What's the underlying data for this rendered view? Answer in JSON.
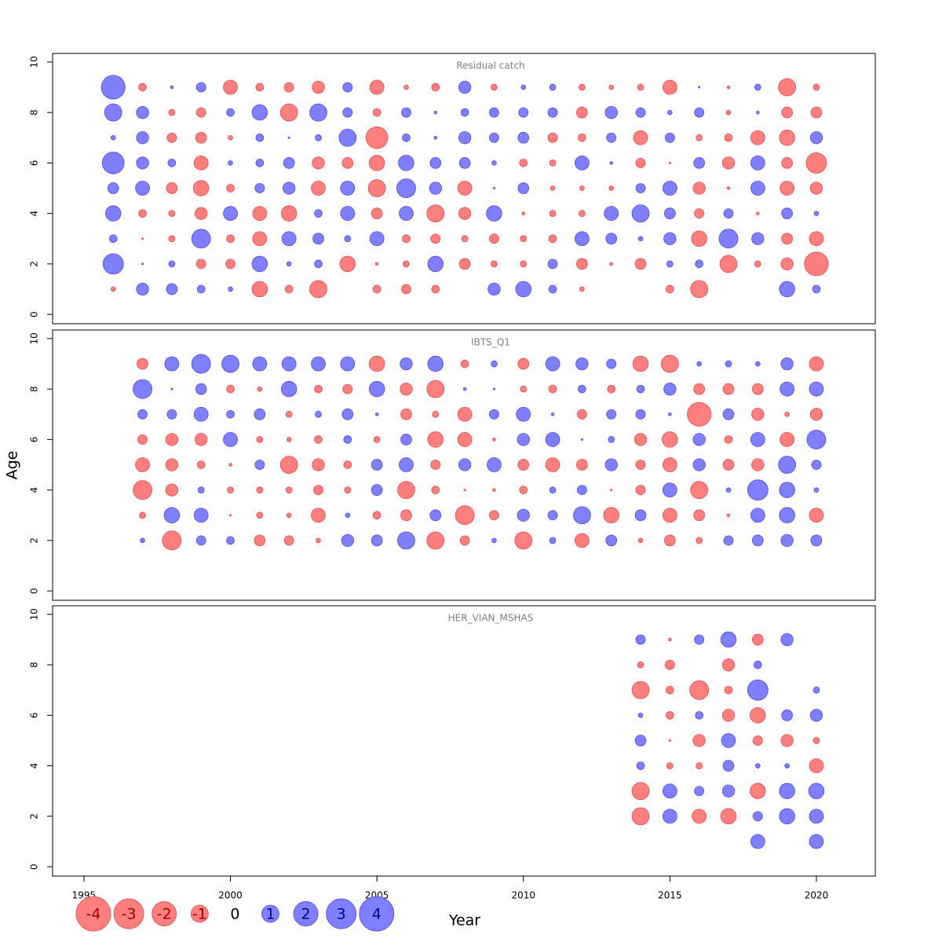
{
  "chart_data": {
    "type": "bubble",
    "xlabel": "Year",
    "ylabel": "Age",
    "xlim": [
      1993.93,
      2022.01
    ],
    "xticks": [
      1995,
      2000,
      2005,
      2010,
      2015,
      2020
    ],
    "ylim": [
      -0.37,
      10.34
    ],
    "yticks": [
      0,
      2,
      4,
      6,
      8,
      10
    ],
    "negative_color": "#ff7f7f",
    "positive_color": "#7f7fff",
    "panels": [
      {
        "title": "Residual catch",
        "x": [
          1996,
          1997,
          1998,
          1999,
          2000,
          2001,
          2002,
          2003,
          2004,
          2005,
          2006,
          2007,
          2008,
          2009,
          2010,
          2011,
          2012,
          2013,
          2014,
          2015,
          2016,
          2017,
          2018,
          2019,
          2020
        ],
        "y": [
          1,
          2,
          3,
          4,
          5,
          6,
          7,
          8,
          9
        ],
        "values": [
          [
            -0.07,
            0.5,
            0.4,
            0.2,
            0.07,
            -0.8,
            -0.2,
            -1.0,
            null,
            -0.2,
            -0.3,
            -0.2,
            null,
            0.5,
            0.8,
            0.2,
            -0.07,
            null,
            null,
            -0.2,
            -1.0,
            null,
            null,
            0.8,
            0.2
          ],
          [
            1.4,
            0.01,
            0.13,
            -0.3,
            -0.3,
            0.8,
            0.07,
            0.2,
            -0.8,
            -0.03,
            -0.13,
            0.8,
            -0.4,
            -0.13,
            -0.13,
            0.3,
            -0.4,
            -0.03,
            -0.4,
            0.13,
            0.2,
            -1.0,
            -0.13,
            -0.5,
            -1.9
          ],
          [
            0.2,
            -0.01,
            -0.13,
            1.2,
            -0.2,
            -0.67,
            0.67,
            0.4,
            0.13,
            0.67,
            -0.2,
            -0.3,
            -0.13,
            -0.3,
            -0.13,
            -0.2,
            0.67,
            0.4,
            0.07,
            0.5,
            -0.8,
            1.2,
            0.5,
            -0.4,
            -0.67
          ],
          [
            0.8,
            -0.2,
            -0.13,
            -0.5,
            0.67,
            -0.67,
            -0.8,
            0.2,
            0.67,
            -0.4,
            0.67,
            -1.0,
            -0.5,
            0.8,
            -0.03,
            -0.13,
            -0.13,
            0.67,
            1.0,
            0.4,
            -0.3,
            0.3,
            -0.03,
            0.4,
            0.07
          ],
          [
            0.4,
            0.67,
            -0.4,
            -0.8,
            -0.2,
            0.3,
            0.5,
            -0.67,
            0.67,
            -1.0,
            1.2,
            0.5,
            -0.67,
            0.01,
            0.4,
            -0.07,
            -0.07,
            -0.07,
            0.3,
            0.67,
            -0.5,
            -0.03,
            0.67,
            -0.67,
            -0.5
          ],
          [
            1.6,
            0.5,
            0.2,
            -0.67,
            0.07,
            0.2,
            0.4,
            -0.5,
            -0.4,
            -0.8,
            0.8,
            0.4,
            0.4,
            0.07,
            -0.2,
            -0.13,
            0.67,
            0.03,
            -0.3,
            -0.01,
            0.4,
            -0.5,
            0.67,
            -0.4,
            -1.4
          ],
          [
            0.07,
            0.5,
            -0.3,
            -0.4,
            -0.07,
            0.2,
            0.01,
            0.13,
            1.0,
            -1.6,
            0.2,
            0.03,
            0.5,
            0.3,
            0.4,
            -0.3,
            -0.2,
            0.3,
            -0.67,
            0.3,
            -0.13,
            -0.2,
            -0.67,
            -0.8,
            0.5
          ],
          [
            1.0,
            0.5,
            -0.13,
            -0.3,
            0.2,
            0.8,
            -1.0,
            1.0,
            0.3,
            -0.2,
            0.3,
            0.03,
            0.2,
            0.3,
            0.3,
            0.3,
            -0.4,
            0.5,
            0.3,
            0.07,
            0.3,
            -0.07,
            0.03,
            -0.4,
            -0.4
          ],
          [
            1.9,
            -0.2,
            0.03,
            0.3,
            -0.67,
            -0.2,
            -0.3,
            -0.5,
            0.3,
            -0.67,
            -0.07,
            -0.2,
            0.5,
            -0.13,
            0.07,
            0.13,
            -0.13,
            -0.07,
            -0.13,
            -0.67,
            0.01,
            -0.03,
            0.13,
            -1.0,
            -0.13
          ]
        ]
      },
      {
        "title": "IBTS_Q1",
        "x": [
          1997,
          1998,
          1999,
          2000,
          2001,
          2002,
          2003,
          2004,
          2005,
          2006,
          2007,
          2008,
          2009,
          2010,
          2011,
          2012,
          2013,
          2014,
          2015,
          2016,
          2017,
          2018,
          2019,
          2020
        ],
        "y": [
          2,
          3,
          4,
          5,
          6,
          7,
          8,
          9
        ],
        "values": [
          [
            0.07,
            -1.2,
            0.3,
            0.2,
            -0.4,
            -0.3,
            -0.07,
            0.5,
            0.4,
            1.0,
            -1.0,
            -0.3,
            0.07,
            -1.0,
            0.13,
            -0.67,
            0.4,
            -0.07,
            -0.4,
            -0.13,
            0.3,
            0.4,
            0.5,
            0.4
          ],
          [
            -0.13,
            0.8,
            0.67,
            -0.01,
            -0.13,
            -0.07,
            -0.67,
            0.07,
            -0.2,
            -0.4,
            0.4,
            -1.2,
            -0.3,
            0.5,
            0.3,
            1.0,
            -0.8,
            0.4,
            -0.67,
            -0.4,
            -0.03,
            0.67,
            0.8,
            -0.67
          ],
          [
            -1.2,
            -0.5,
            0.13,
            -0.13,
            -0.13,
            -0.13,
            -0.3,
            -0.13,
            0.4,
            -1.0,
            -0.2,
            -0.01,
            -0.03,
            -0.2,
            0.13,
            0.3,
            -0.01,
            -0.3,
            0.67,
            -1.0,
            0.07,
            1.4,
            0.8,
            0.07
          ],
          [
            -0.67,
            -0.5,
            -0.2,
            -0.03,
            0.3,
            -1.0,
            -0.5,
            -0.2,
            0.4,
            0.67,
            -0.3,
            0.5,
            0.67,
            -0.4,
            -0.67,
            -0.4,
            0.5,
            -0.3,
            -0.67,
            0.5,
            -0.4,
            -0.5,
            1.0,
            0.3
          ],
          [
            -0.3,
            -0.5,
            -0.5,
            0.67,
            -0.13,
            -0.07,
            -0.2,
            0.2,
            -0.13,
            0.4,
            -0.8,
            -0.67,
            -0.03,
            0.5,
            0.67,
            0.01,
            0.13,
            -0.5,
            -0.8,
            0.5,
            -0.2,
            0.67,
            -0.67,
            1.2
          ],
          [
            0.3,
            0.3,
            0.67,
            0.2,
            0.4,
            -0.13,
            0.13,
            0.4,
            0.03,
            -0.4,
            -0.13,
            -0.67,
            0.3,
            0.67,
            0.03,
            -0.3,
            0.3,
            0.3,
            0.03,
            -1.9,
            0.4,
            -0.5,
            -0.07,
            -0.5
          ],
          [
            1.2,
            0.01,
            0.4,
            -0.2,
            -0.07,
            0.8,
            -0.2,
            -0.3,
            0.8,
            -0.5,
            -1.0,
            0.03,
            0.01,
            -0.13,
            -0.2,
            0.2,
            -0.2,
            0.2,
            0.5,
            -0.4,
            -0.4,
            -0.4,
            0.67,
            0.67
          ],
          [
            -0.4,
            0.67,
            1.2,
            1.0,
            0.67,
            0.67,
            0.67,
            0.67,
            -0.8,
            0.5,
            0.8,
            -0.2,
            0.13,
            -0.4,
            0.67,
            0.5,
            0.3,
            -0.8,
            -1.0,
            0.07,
            0.13,
            0.07,
            0.5,
            -0.67
          ]
        ]
      },
      {
        "title": "HER_VIAN_MSHAS",
        "x": [
          2014,
          2015,
          2016,
          2017,
          2018,
          2019,
          2020
        ],
        "y": [
          1,
          2,
          3,
          4,
          5,
          6,
          7,
          8,
          9
        ],
        "values": [
          [
            null,
            null,
            null,
            null,
            0.67,
            null,
            0.67
          ],
          [
            -1.0,
            0.67,
            -0.67,
            -0.8,
            0.3,
            0.8,
            0.67
          ],
          [
            -1.0,
            0.67,
            0.3,
            0.5,
            -0.8,
            0.8,
            0.8
          ],
          [
            0.2,
            -0.13,
            -0.13,
            0.4,
            0.07,
            0.07,
            -0.67
          ],
          [
            0.4,
            -0.01,
            -0.5,
            0.67,
            -0.3,
            -0.5,
            -0.13
          ],
          [
            0.07,
            -0.2,
            0.2,
            -0.5,
            -0.8,
            0.4,
            0.5
          ],
          [
            -1.0,
            -0.2,
            -1.2,
            -0.2,
            1.4,
            null,
            0.13
          ],
          [
            -0.13,
            -0.3,
            null,
            -0.5,
            0.2,
            null,
            null
          ],
          [
            0.3,
            -0.03,
            0.3,
            0.8,
            -0.4,
            0.5,
            null
          ]
        ]
      }
    ],
    "legend": {
      "values": [
        -4,
        -3,
        -2,
        -1,
        0,
        1,
        2,
        3,
        4
      ]
    }
  }
}
